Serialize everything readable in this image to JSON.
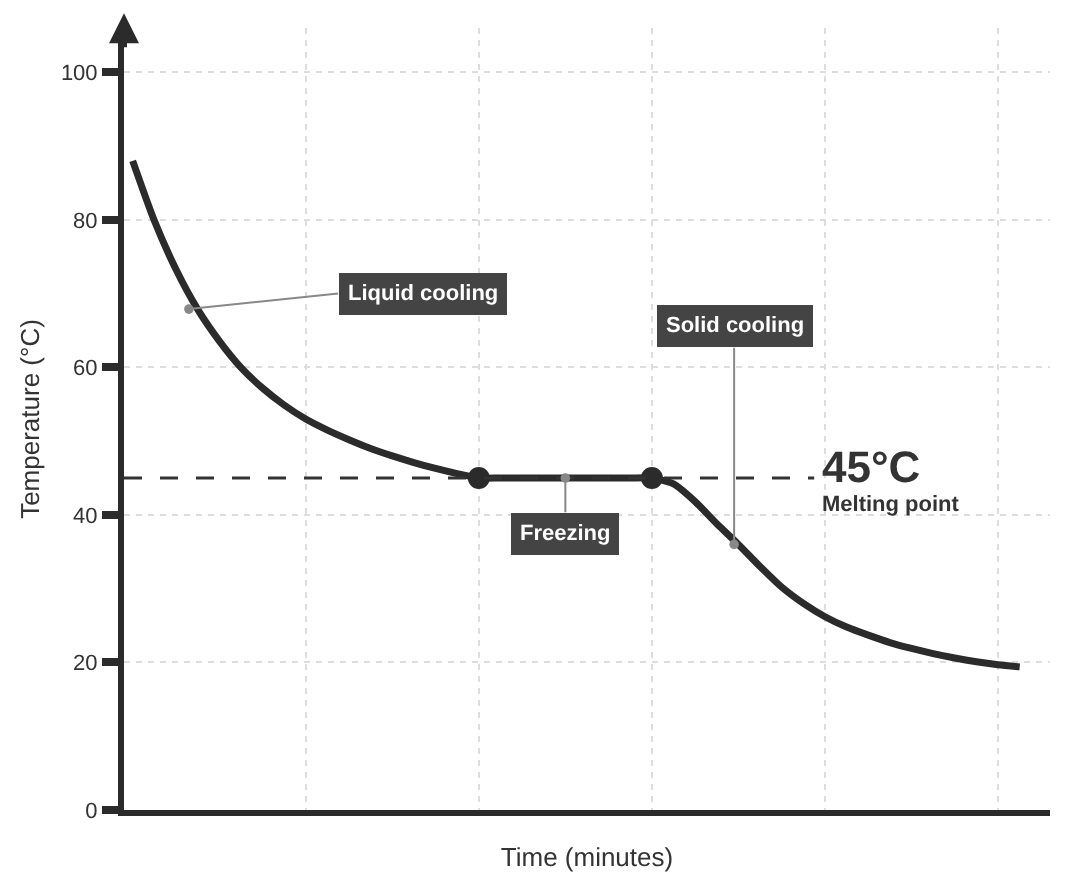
{
  "chart_data": {
    "type": "line",
    "xlabel": "Time (minutes)",
    "ylabel": "Temperature (°C)",
    "categories": [
      null,
      null,
      null,
      null,
      null,
      null,
      null,
      null,
      null,
      null,
      null,
      null,
      null,
      null,
      null,
      null,
      null,
      null,
      null,
      null,
      null,
      null,
      null,
      null,
      null,
      null,
      null,
      null,
      null,
      null,
      null,
      null,
      null,
      null,
      null,
      null,
      null,
      null,
      null,
      null,
      null,
      null
    ],
    "series": [
      {
        "color": "#2b2b2b",
        "values": [
          88.0,
          79.9,
          73.3,
          67.9,
          63.6,
          60.0,
          57.2,
          54.9,
          53.0,
          51.5,
          50.2,
          49.0,
          48.0,
          47.1,
          46.3,
          45.6,
          45,
          45,
          45,
          45,
          45,
          45,
          45,
          45,
          45,
          44.2,
          41.8,
          38.8,
          36.0,
          33.0,
          30.2,
          28.0,
          26.2,
          24.8,
          23.7,
          22.7,
          21.9,
          21.2,
          20.6,
          20.1,
          19.7,
          19.4
        ]
      },
      {
        "type": "scatter",
        "marker": "circle",
        "color": "#2b2b2b",
        "values": [
          null,
          null,
          null,
          null,
          null,
          null,
          null,
          null,
          null,
          null,
          null,
          null,
          null,
          null,
          null,
          null,
          45,
          null,
          null,
          null,
          null,
          null,
          null,
          null,
          45,
          null,
          null,
          null,
          null,
          null,
          null,
          null,
          null,
          null,
          null,
          null,
          null,
          null,
          null,
          null,
          null,
          null
        ]
      }
    ],
    "ylim": [
      0,
      106
    ],
    "yticks": [
      0,
      20,
      40,
      60,
      80,
      100
    ],
    "grid": true,
    "ref_lines": [
      {
        "axis": "y",
        "value": 45,
        "label": "45°C\nMelting point",
        "line_style": "dashed",
        "color": "#333333"
      }
    ],
    "annotations": [
      "Liquid cooling",
      "Freezing",
      "Solid cooling"
    ]
  }
}
